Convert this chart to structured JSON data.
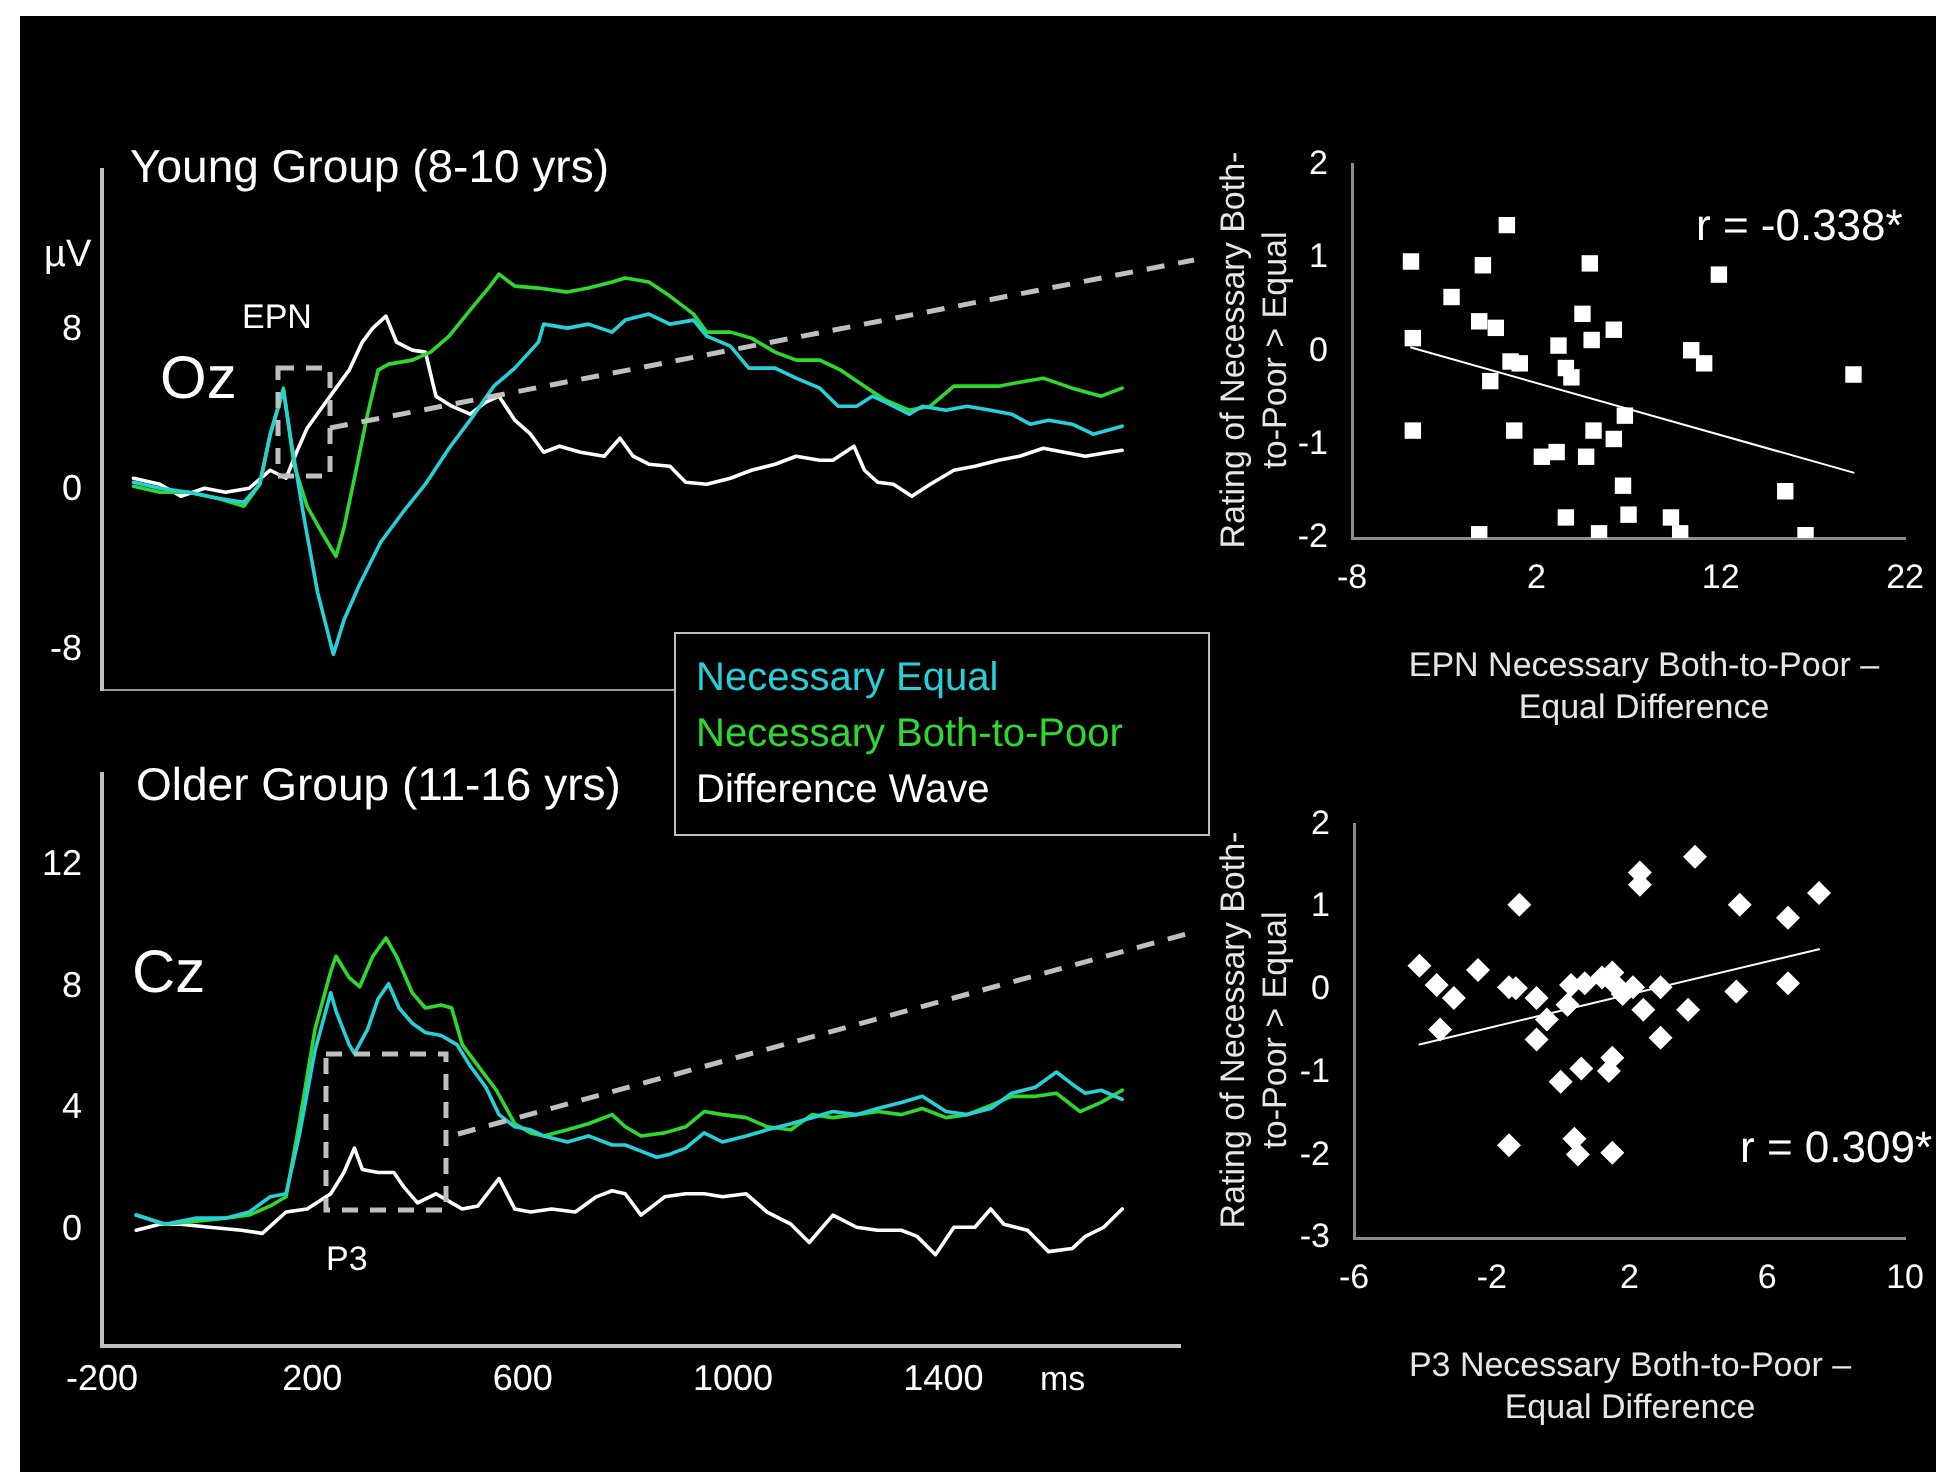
{
  "chart_data": [
    {
      "type": "line",
      "title": "Young Group (8-10 yrs)",
      "ylabel": "µV",
      "annotations": [
        "Oz",
        "EPN"
      ],
      "xlim": [
        -200,
        1850
      ],
      "ylim": [
        -10,
        16
      ],
      "yticks": [
        -8,
        0,
        8
      ],
      "tick_labels": "y",
      "marker": "none",
      "line_style": "solid",
      "series": [
        {
          "name": "Necessary Equal",
          "color": "#26d0d8",
          "x": [
            -140,
            -90,
            -35,
            20,
            70,
            100,
            120,
            145,
            160,
            185,
            210,
            240,
            260,
            290,
            330,
            375,
            415,
            460,
            500,
            545,
            585,
            630,
            640,
            685,
            725,
            770,
            795,
            840,
            880,
            925,
            950,
            995,
            1030,
            1080,
            1120,
            1165,
            1200,
            1235,
            1265,
            1290,
            1335,
            1360,
            1405,
            1445,
            1490,
            1530,
            1565,
            1600,
            1645,
            1685,
            1740
          ],
          "values": [
            0.4,
            0.1,
            -0.1,
            -0.4,
            -0.6,
            0.3,
            2.8,
            5.0,
            2.4,
            -1.5,
            -5.1,
            -8.2,
            -6.5,
            -4.7,
            -2.6,
            -1.0,
            0.3,
            2.1,
            3.5,
            5.2,
            6.1,
            7.4,
            8.3,
            8.1,
            8.3,
            7.9,
            8.5,
            8.8,
            8.3,
            8.5,
            7.7,
            7.2,
            6.1,
            6.1,
            5.6,
            5.1,
            4.2,
            4.2,
            4.7,
            4.4,
            3.8,
            4.2,
            4.0,
            4.2,
            4.0,
            3.8,
            3.3,
            3.5,
            3.3,
            2.8,
            3.2
          ]
        },
        {
          "name": "Necessary Both-to-Poor",
          "color": "#2ed82e",
          "x": [
            -140,
            -90,
            -35,
            20,
            70,
            100,
            120,
            145,
            165,
            190,
            220,
            245,
            260,
            280,
            305,
            325,
            345,
            390,
            425,
            460,
            500,
            535,
            555,
            585,
            630,
            685,
            725,
            770,
            795,
            840,
            880,
            925,
            950,
            995,
            1035,
            1080,
            1120,
            1165,
            1205,
            1250,
            1290,
            1335,
            1375,
            1420,
            1460,
            1505,
            1545,
            1590,
            1645,
            1700,
            1740
          ],
          "values": [
            0.2,
            -0.1,
            -0.1,
            -0.4,
            -0.8,
            0.3,
            2.8,
            5.1,
            1.3,
            -0.8,
            -2.2,
            -3.3,
            -1.9,
            0.6,
            3.8,
            6.0,
            6.3,
            6.5,
            6.9,
            7.7,
            9.0,
            10.1,
            10.8,
            10.2,
            10.1,
            9.9,
            10.1,
            10.4,
            10.6,
            10.4,
            9.7,
            8.8,
            7.9,
            7.9,
            7.6,
            6.9,
            6.5,
            6.5,
            6.0,
            5.2,
            4.5,
            4.0,
            4.2,
            5.2,
            5.2,
            5.2,
            5.4,
            5.6,
            5.1,
            4.7,
            5.1
          ]
        },
        {
          "name": "Difference Wave",
          "color": "#ffffff",
          "x": [
            -140,
            -90,
            -50,
            -5,
            35,
            80,
            120,
            150,
            170,
            190,
            220,
            245,
            270,
            295,
            315,
            340,
            360,
            390,
            415,
            435,
            465,
            500,
            530,
            555,
            585,
            615,
            640,
            670,
            710,
            755,
            785,
            810,
            840,
            880,
            910,
            950,
            995,
            1035,
            1080,
            1120,
            1165,
            1190,
            1230,
            1250,
            1275,
            1305,
            1340,
            1375,
            1420,
            1460,
            1505,
            1545,
            1590,
            1630,
            1670,
            1715,
            1740
          ],
          "values": [
            0.6,
            0.3,
            -0.3,
            0.1,
            -0.1,
            0.1,
            1.0,
            0.6,
            1.9,
            3.1,
            4.2,
            5.1,
            6.0,
            7.4,
            8.1,
            8.7,
            7.4,
            7.0,
            6.9,
            4.7,
            4.2,
            3.8,
            4.4,
            4.7,
            3.5,
            2.8,
            1.9,
            2.2,
            1.9,
            1.7,
            2.6,
            1.7,
            1.3,
            1.2,
            0.4,
            0.3,
            0.6,
            1.0,
            1.3,
            1.7,
            1.5,
            1.5,
            2.2,
            1.0,
            0.4,
            0.3,
            -0.3,
            0.3,
            1.0,
            1.2,
            1.5,
            1.7,
            2.1,
            1.9,
            1.7,
            1.9,
            2.0
          ]
        }
      ]
    },
    {
      "type": "line",
      "title": "Older Group (11-16 yrs)",
      "xlabel": "ms",
      "annotations": [
        "Cz",
        "P3"
      ],
      "xlim": [
        -200,
        1850
      ],
      "xticks": [
        -200,
        200,
        600,
        1000,
        1400
      ],
      "ylim": [
        -3.8,
        15
      ],
      "yticks": [
        0,
        4,
        8,
        12
      ],
      "marker": "none",
      "line_style": "solid",
      "series": [
        {
          "color": "#26d0d8",
          "x": [
            -135,
            -80,
            -20,
            35,
            80,
            120,
            150,
            175,
            205,
            235,
            245,
            270,
            280,
            305,
            325,
            345,
            365,
            390,
            415,
            445,
            475,
            500,
            530,
            555,
            585,
            615,
            640,
            685,
            725,
            770,
            795,
            825,
            855,
            880,
            910,
            945,
            980,
            1025,
            1065,
            1110,
            1150,
            1190,
            1235,
            1275,
            1320,
            1360,
            1405,
            1445,
            1490,
            1530,
            1575,
            1615,
            1645,
            1670,
            1700,
            1740
          ],
          "values": [
            0.5,
            0.2,
            0.4,
            0.4,
            0.6,
            1.1,
            1.2,
            3.1,
            5.9,
            7.8,
            7.2,
            6.1,
            5.8,
            6.6,
            7.6,
            8.1,
            7.3,
            6.8,
            6.5,
            6.4,
            6.1,
            5.4,
            4.7,
            3.8,
            3.4,
            3.3,
            3.1,
            2.9,
            3.1,
            2.8,
            2.8,
            2.6,
            2.4,
            2.5,
            2.7,
            3.2,
            2.9,
            3.1,
            3.3,
            3.5,
            3.7,
            3.9,
            3.8,
            4.0,
            4.2,
            4.4,
            3.9,
            3.8,
            4.0,
            4.5,
            4.7,
            5.2,
            4.8,
            4.5,
            4.6,
            4.3
          ]
        },
        {
          "color": "#2ed82e",
          "x": [
            -135,
            -80,
            -20,
            35,
            80,
            120,
            150,
            175,
            205,
            235,
            245,
            270,
            290,
            315,
            340,
            360,
            390,
            415,
            445,
            465,
            485,
            515,
            550,
            585,
            615,
            640,
            685,
            725,
            770,
            795,
            825,
            870,
            910,
            945,
            980,
            1025,
            1065,
            1110,
            1150,
            1190,
            1235,
            1275,
            1320,
            1360,
            1405,
            1445,
            1490,
            1530,
            1575,
            1615,
            1660,
            1700,
            1740
          ],
          "values": [
            0.5,
            0.2,
            0.3,
            0.4,
            0.5,
            0.8,
            1.1,
            3.5,
            6.6,
            8.5,
            9.0,
            8.3,
            8.0,
            9.0,
            9.6,
            9.0,
            7.8,
            7.3,
            7.4,
            7.3,
            6.1,
            5.4,
            4.6,
            3.5,
            3.2,
            3.1,
            3.3,
            3.5,
            3.8,
            3.4,
            3.1,
            3.2,
            3.4,
            3.9,
            3.8,
            3.7,
            3.4,
            3.3,
            3.8,
            3.7,
            3.8,
            3.9,
            3.8,
            4.0,
            3.7,
            3.8,
            4.1,
            4.4,
            4.4,
            4.5,
            3.9,
            4.2,
            4.6
          ]
        },
        {
          "color": "#ffffff",
          "x": [
            -135,
            -90,
            -50,
            5,
            65,
            105,
            150,
            190,
            235,
            260,
            280,
            295,
            325,
            355,
            375,
            400,
            435,
            465,
            485,
            515,
            555,
            585,
            615,
            655,
            700,
            740,
            770,
            795,
            825,
            870,
            910,
            945,
            980,
            1025,
            1065,
            1110,
            1145,
            1190,
            1235,
            1275,
            1320,
            1350,
            1385,
            1420,
            1460,
            1490,
            1515,
            1560,
            1600,
            1645,
            1670,
            1705,
            1740
          ],
          "values": [
            0,
            0.2,
            0.2,
            0.1,
            0,
            -0.1,
            0.6,
            0.7,
            1.2,
            1.9,
            2.7,
            2.0,
            1.9,
            1.9,
            1.4,
            0.9,
            1.2,
            0.9,
            0.7,
            0.8,
            1.7,
            0.7,
            0.6,
            0.7,
            0.6,
            1.1,
            1.3,
            1.2,
            0.5,
            1.1,
            1.2,
            1.2,
            1.1,
            1.2,
            0.6,
            0.2,
            -0.4,
            0.5,
            0.1,
            0,
            0,
            -0.2,
            -0.8,
            0.1,
            0.1,
            0.7,
            0.2,
            0,
            -0.7,
            -0.6,
            -0.2,
            0.1,
            0.7
          ]
        }
      ]
    },
    {
      "type": "scatter",
      "xlabel": "EPN Necessary Both-to-Poor – Equal Difference",
      "ylabel": "Rating of Necessary Both-to-Poor > Equal",
      "annotations": [
        "r = -0.338*"
      ],
      "xlim": [
        -8,
        22
      ],
      "xticks": [
        -8,
        2,
        12,
        22
      ],
      "ylim": [
        -2,
        2
      ],
      "yticks": [
        -2,
        -1,
        0,
        1,
        2
      ],
      "marker": "square",
      "series": [
        {
          "color": "#ffffff",
          "x": [
            -4.8,
            -4.7,
            -4.7,
            -2.6,
            -1.1,
            -0.9,
            -1.1,
            -0.5,
            -0.2,
            0.4,
            0.6,
            1.1,
            0.8,
            2.3,
            3.1,
            3.2,
            3.6,
            3.9,
            3.6,
            4.5,
            4.7,
            4.9,
            5.0,
            5.1,
            5.4,
            6.2,
            6.2,
            6.8,
            6.7,
            7.0,
            9.3,
            9.8,
            10.4,
            11.1,
            11.9,
            15.5,
            16.6,
            19.2
          ],
          "values": [
            0.96,
            0.14,
            -0.85,
            0.58,
            0.32,
            0.92,
            -1.96,
            -0.32,
            0.25,
            1.35,
            -0.11,
            -0.13,
            -0.85,
            -1.13,
            -1.08,
            0.06,
            -0.18,
            -0.28,
            -1.78,
            0.4,
            -1.13,
            0.94,
            0.12,
            -0.85,
            -1.95,
            0.23,
            -0.94,
            -0.69,
            -1.44,
            -1.75,
            -1.78,
            -1.95,
            0.01,
            -0.13,
            0.82,
            -1.5,
            -1.97,
            -0.25
          ]
        },
        {
          "type": "line",
          "color": "#ffffff",
          "marker": "none",
          "x": [
            -4.8,
            19.2
          ],
          "values": [
            0.04,
            -1.3
          ]
        }
      ]
    },
    {
      "type": "scatter",
      "xlabel": "P3 Necessary Both-to-Poor – Equal Difference",
      "ylabel": "Rating of Necessary Both-to-Poor > Equal",
      "annotations": [
        "r = 0.309*"
      ],
      "xlim": [
        -6,
        10
      ],
      "xticks": [
        -6,
        -2,
        2,
        6,
        10
      ],
      "ylim": [
        -3,
        2
      ],
      "yticks": [
        -3,
        -2,
        -1,
        0,
        1,
        2
      ],
      "marker": "diamond",
      "series": [
        {
          "color": "#ffffff",
          "x": [
            -4.1,
            -3.6,
            -3.1,
            -3.5,
            -2.4,
            -1.5,
            -1.3,
            -1.2,
            -1.5,
            -0.7,
            -0.4,
            -0.7,
            0.0,
            0.2,
            0.3,
            0.4,
            0.5,
            0.6,
            0.7,
            1.2,
            1.5,
            1.6,
            1.8,
            2.1,
            1.4,
            1.5,
            1.5,
            2.3,
            2.3,
            2.4,
            2.9,
            2.9,
            3.7,
            3.9,
            5.1,
            5.2,
            6.6,
            6.6,
            7.5
          ],
          "values": [
            0.29,
            0.06,
            -0.1,
            -0.48,
            0.24,
            0.03,
            0.02,
            1.03,
            -1.88,
            -0.1,
            -0.36,
            -0.6,
            -1.11,
            -0.18,
            0.06,
            -1.8,
            -1.99,
            -0.95,
            0.08,
            0.15,
            0.21,
            0.06,
            -0.05,
            0.03,
            -0.98,
            -0.82,
            -1.97,
            1.42,
            1.27,
            -0.24,
            0.03,
            -0.58,
            -0.24,
            1.61,
            -0.02,
            1.03,
            0.87,
            0.08,
            1.17
          ]
        },
        {
          "type": "line",
          "color": "#ffffff",
          "marker": "none",
          "x": [
            -4.1,
            7.5
          ],
          "values": [
            -0.66,
            0.49
          ]
        }
      ]
    }
  ]
}
